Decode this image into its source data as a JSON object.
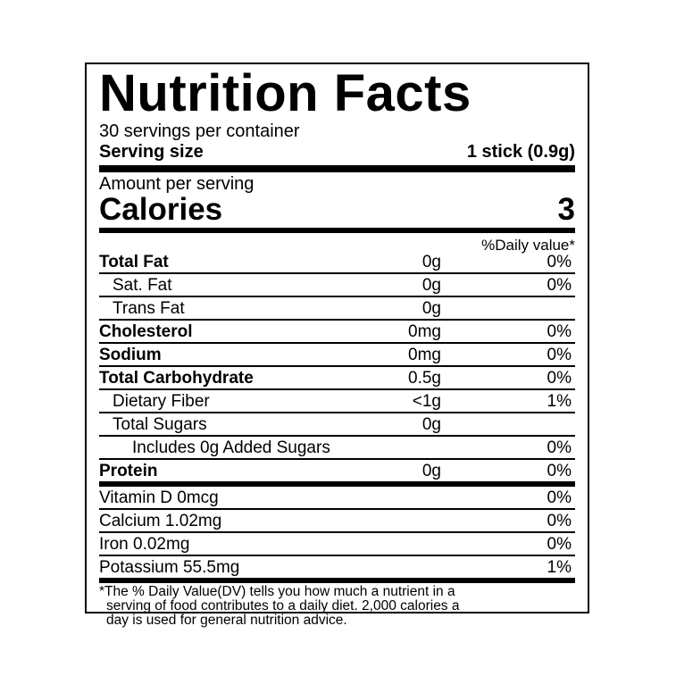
{
  "title": "Nutrition Facts",
  "servings_per_container": "30 servings per container",
  "serving_size": {
    "label": "Serving size",
    "value": "1 stick (0.9g)"
  },
  "amount_per_serving": "Amount per serving",
  "calories": {
    "label": "Calories",
    "value": "3"
  },
  "daily_value_header": "%Daily value*",
  "nutrients": [
    {
      "name": "Total Fat",
      "amount": "0g",
      "dv": "0%",
      "bold": true,
      "indent": 0
    },
    {
      "name": "Sat. Fat",
      "amount": "0g",
      "dv": "0%",
      "bold": false,
      "indent": 1
    },
    {
      "name": "Trans Fat",
      "amount": "0g",
      "dv": "",
      "bold": false,
      "indent": 1
    },
    {
      "name": "Cholesterol",
      "amount": "0mg",
      "dv": "0%",
      "bold": true,
      "indent": 0
    },
    {
      "name": "Sodium",
      "amount": "0mg",
      "dv": "0%",
      "bold": true,
      "indent": 0
    },
    {
      "name": "Total Carbohydrate",
      "amount": "0.5g",
      "dv": "0%",
      "bold": true,
      "indent": 0
    },
    {
      "name": "Dietary Fiber",
      "amount": "<1g",
      "dv": "1%",
      "bold": false,
      "indent": 1
    },
    {
      "name": "Total Sugars",
      "amount": "0g",
      "dv": "",
      "bold": false,
      "indent": 1
    },
    {
      "name": "Includes 0g Added Sugars",
      "amount": "",
      "dv": "0%",
      "bold": false,
      "indent": 2
    },
    {
      "name": "Protein",
      "amount": "0g",
      "dv": "0%",
      "bold": true,
      "indent": 0
    }
  ],
  "vitamins": [
    {
      "name": "Vitamin D 0mcg",
      "dv": "0%"
    },
    {
      "name": "Calcium 1.02mg",
      "dv": "0%"
    },
    {
      "name": "Iron 0.02mg",
      "dv": "0%"
    },
    {
      "name": "Potassium 55.5mg",
      "dv": "1%"
    }
  ],
  "footnote": [
    "*The % Daily Value(DV) tells you how much a nutrient in a",
    "serving of food contributes to a daily diet. 2,000 calories a",
    "day is used for general nutrition advice."
  ]
}
